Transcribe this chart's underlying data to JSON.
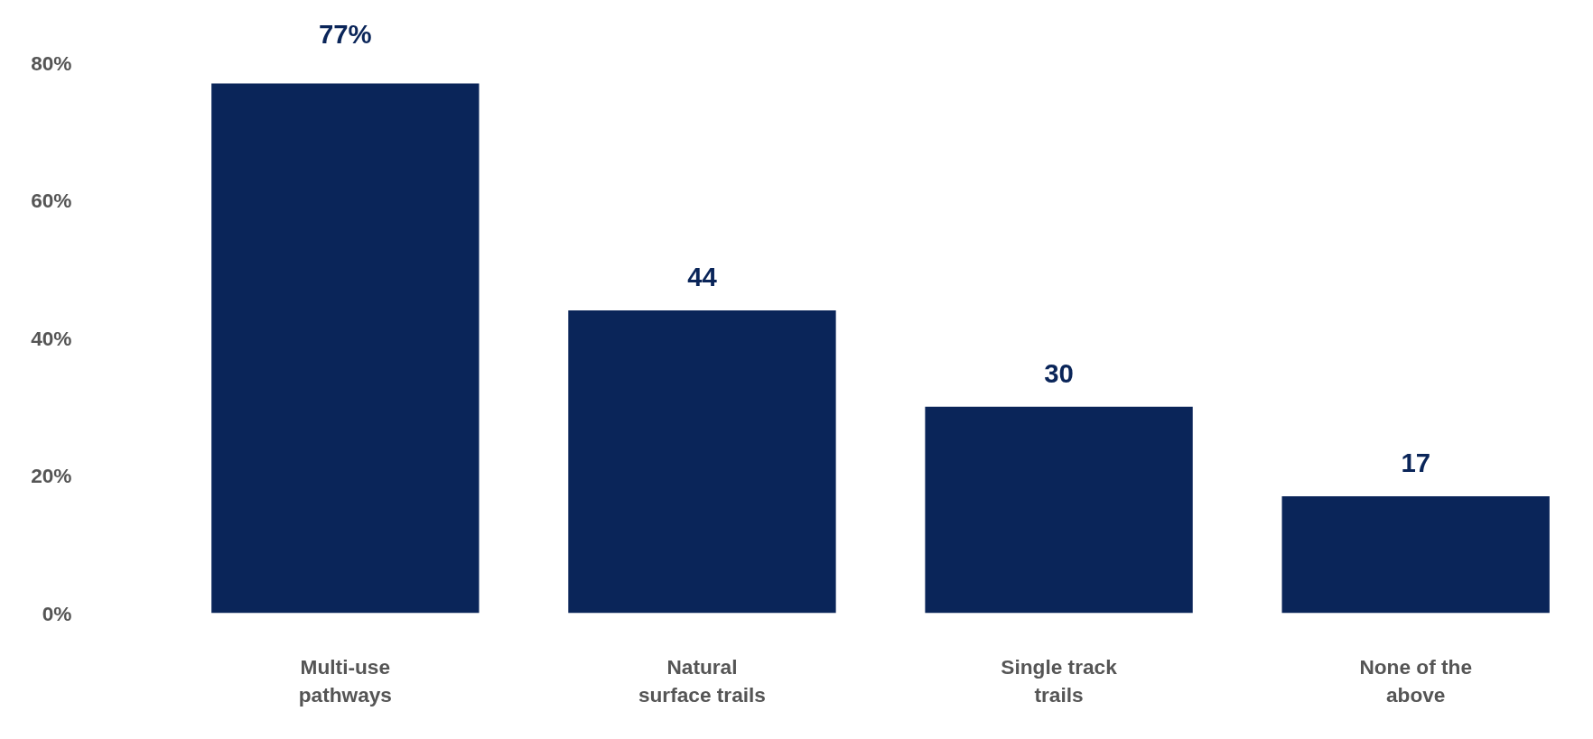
{
  "chart_data": {
    "type": "bar",
    "categories": [
      "Multi-use\npathways",
      "Natural\nsurface trails",
      "Single track\ntrails",
      "None of the\nabove"
    ],
    "values": [
      77,
      44,
      30,
      17
    ],
    "value_labels": [
      "77%",
      "44",
      "30",
      "17"
    ],
    "color": "#0a2559",
    "ylim": [
      0,
      80
    ],
    "yticks": [
      {
        "value": 0,
        "label": "0%"
      },
      {
        "value": 20,
        "label": "20%"
      },
      {
        "value": 40,
        "label": "40%"
      },
      {
        "value": 60,
        "label": "60%"
      },
      {
        "value": 80,
        "label": "80%"
      }
    ],
    "grid": false
  }
}
